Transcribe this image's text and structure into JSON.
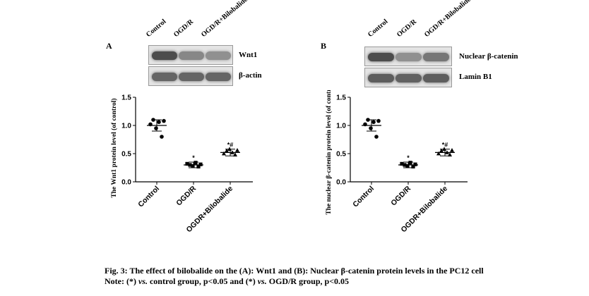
{
  "panels": [
    {
      "letter": "A",
      "lanes": [
        "Control",
        "OGD/R",
        "OGD/R+Bilobalide"
      ],
      "blots": [
        {
          "label": "Wnt1",
          "intensity": [
            0.85,
            0.5,
            0.45
          ]
        },
        {
          "label": "β-actin",
          "intensity": [
            0.7,
            0.7,
            0.7
          ]
        }
      ],
      "chart_data": {
        "type": "scatter",
        "ylabel": "The Wnt1 protein level (of control)",
        "ylim": [
          0,
          1.5
        ],
        "yticks": [
          "0.0",
          "0.5",
          "1.0",
          "1.5"
        ],
        "categories": [
          "Control",
          "OGD/R",
          "OGDR+Bilobalide"
        ],
        "groups": [
          {
            "mean": 1.0,
            "sd": 0.1,
            "points": [
              1.02,
              1.1,
              0.95,
              1.06,
              0.8,
              1.08
            ],
            "annotation": ""
          },
          {
            "mean": 0.3,
            "sd": 0.05,
            "points": [
              0.32,
              0.3,
              0.28,
              0.34,
              0.27,
              0.31
            ],
            "annotation": "*"
          },
          {
            "mean": 0.52,
            "sd": 0.06,
            "points": [
              0.5,
              0.55,
              0.58,
              0.52,
              0.48,
              0.56
            ],
            "annotation": "*#"
          }
        ],
        "grid": false
      }
    },
    {
      "letter": "B",
      "lanes": [
        "Control",
        "OGD/R",
        "OGD/R+Bilobalide"
      ],
      "blots": [
        {
          "label": "Nuclear β-catenin",
          "intensity": [
            0.85,
            0.45,
            0.6
          ]
        },
        {
          "label": "Lamin B1",
          "intensity": [
            0.75,
            0.72,
            0.74
          ]
        }
      ],
      "chart_data": {
        "type": "scatter",
        "ylabel": "The nuclear β-catenin protein level (of control)",
        "ylim": [
          0,
          1.5
        ],
        "yticks": [
          "0.0",
          "0.5",
          "1.0",
          "1.5"
        ],
        "categories": [
          "Control",
          "OGD/R",
          "OGDR+Bilobalide"
        ],
        "groups": [
          {
            "mean": 1.0,
            "sd": 0.1,
            "points": [
              1.02,
              1.1,
              0.95,
              1.06,
              0.8,
              1.08
            ],
            "annotation": ""
          },
          {
            "mean": 0.3,
            "sd": 0.05,
            "points": [
              0.32,
              0.3,
              0.28,
              0.34,
              0.27,
              0.31
            ],
            "annotation": "*"
          },
          {
            "mean": 0.52,
            "sd": 0.06,
            "points": [
              0.5,
              0.55,
              0.58,
              0.52,
              0.48,
              0.56
            ],
            "annotation": "*#"
          }
        ],
        "grid": false
      }
    }
  ],
  "caption": {
    "line1": "Fig. 3: The effect of bilobalide on the (A): Wnt1 and (B): Nuclear β-catenin protein levels in the PC12 cell",
    "line2_prefix": "Note: (*) ",
    "line2_vs1": "vs.",
    "line2_mid": " control group, p<0.05 and (*) ",
    "line2_vs2": "vs.",
    "line2_suffix": " OGD/R group, p<0.05"
  }
}
